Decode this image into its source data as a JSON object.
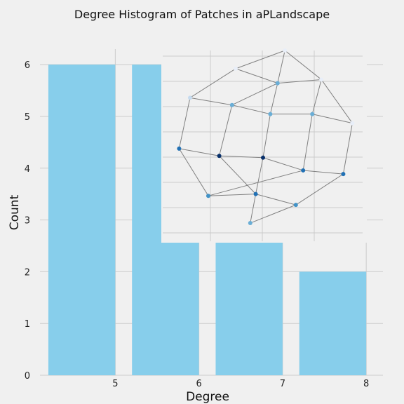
{
  "chart_data": {
    "type": "bar",
    "title": "Degree Histogram of Patches in aPLandscape",
    "xlabel": "Degree",
    "ylabel": "Count",
    "categories": [
      5,
      6,
      7,
      8
    ],
    "values": [
      6,
      6,
      3,
      2
    ],
    "x_ticks": [
      "5",
      "6",
      "7",
      "8"
    ],
    "y_ticks": [
      "0",
      "1",
      "2",
      "3",
      "4",
      "5",
      "6"
    ],
    "xlim": [
      4.1,
      8.2
    ],
    "ylim": [
      0,
      6.3
    ],
    "grid": true,
    "colors": {
      "bar": "#87ceeb",
      "background": "#f0f0f0",
      "grid": "#cbcbcb",
      "edge": "#808080"
    },
    "inset": {
      "type": "network",
      "nodes": [
        {
          "id": 0,
          "x": 0.62,
          "y": 1.0,
          "color": "#e8eef8"
        },
        {
          "id": 1,
          "x": 0.35,
          "y": 0.9,
          "color": "#e8eef8"
        },
        {
          "id": 2,
          "x": 0.82,
          "y": 0.84,
          "color": "#e8eef8"
        },
        {
          "id": 3,
          "x": 0.58,
          "y": 0.82,
          "color": "#6aaed6"
        },
        {
          "id": 4,
          "x": 0.1,
          "y": 0.74,
          "color": "#c6dbef"
        },
        {
          "id": 5,
          "x": 0.33,
          "y": 0.7,
          "color": "#6aaed6"
        },
        {
          "id": 6,
          "x": 0.54,
          "y": 0.65,
          "color": "#6aaed6"
        },
        {
          "id": 7,
          "x": 0.77,
          "y": 0.65,
          "color": "#6aaed6"
        },
        {
          "id": 8,
          "x": 0.99,
          "y": 0.6,
          "color": "#e8eef8"
        },
        {
          "id": 9,
          "x": 0.04,
          "y": 0.46,
          "color": "#2171b5"
        },
        {
          "id": 10,
          "x": 0.26,
          "y": 0.42,
          "color": "#08306b"
        },
        {
          "id": 11,
          "x": 0.5,
          "y": 0.41,
          "color": "#08306b"
        },
        {
          "id": 12,
          "x": 0.72,
          "y": 0.34,
          "color": "#2171b5"
        },
        {
          "id": 13,
          "x": 0.94,
          "y": 0.32,
          "color": "#2171b5"
        },
        {
          "id": 14,
          "x": 0.2,
          "y": 0.2,
          "color": "#4292c6"
        },
        {
          "id": 15,
          "x": 0.46,
          "y": 0.21,
          "color": "#2171b5"
        },
        {
          "id": 16,
          "x": 0.68,
          "y": 0.15,
          "color": "#4292c6"
        },
        {
          "id": 17,
          "x": 0.43,
          "y": 0.05,
          "color": "#6aaed6"
        }
      ],
      "edges": [
        [
          0,
          1
        ],
        [
          0,
          3
        ],
        [
          0,
          2
        ],
        [
          1,
          4
        ],
        [
          1,
          3
        ],
        [
          2,
          3
        ],
        [
          2,
          7
        ],
        [
          2,
          8
        ],
        [
          3,
          5
        ],
        [
          3,
          6
        ],
        [
          4,
          5
        ],
        [
          4,
          9
        ],
        [
          5,
          6
        ],
        [
          5,
          10
        ],
        [
          6,
          7
        ],
        [
          6,
          11
        ],
        [
          7,
          8
        ],
        [
          7,
          12
        ],
        [
          8,
          13
        ],
        [
          9,
          10
        ],
        [
          9,
          14
        ],
        [
          10,
          11
        ],
        [
          10,
          15
        ],
        [
          11,
          12
        ],
        [
          11,
          15
        ],
        [
          12,
          13
        ],
        [
          12,
          14
        ],
        [
          13,
          16
        ],
        [
          14,
          15
        ],
        [
          15,
          16
        ],
        [
          15,
          17
        ],
        [
          16,
          17
        ]
      ]
    }
  }
}
